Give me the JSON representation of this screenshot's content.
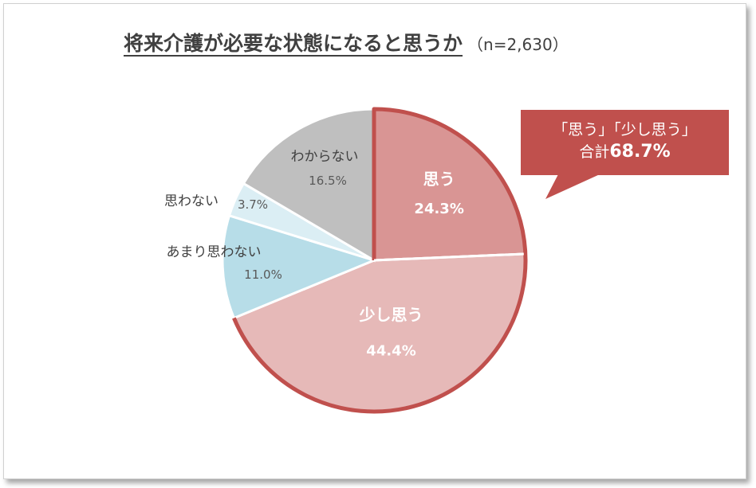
{
  "title": "将来介護が必要な状態になると思うか",
  "subtitle": "（n=2,630）",
  "callout": {
    "line1": "「思う」「少し思う」",
    "prefix": "合計",
    "value": "68.7%"
  },
  "colors": {
    "omou": "#d99594",
    "sukoshi_omou": "#e6b9b8",
    "amari_omowanai": "#b7dde8",
    "omowanai": "#dbeef4",
    "wakaranai": "#bfbfbf",
    "accent": "#c0504d"
  },
  "chart_data": {
    "type": "pie",
    "start": "12 o'clock, clockwise",
    "slices": [
      {
        "label": "思う",
        "value": 24.3,
        "display": "24.3%"
      },
      {
        "label": "少し思う",
        "value": 44.4,
        "display": "44.4%"
      },
      {
        "label": "あまり思わない",
        "value": 11.0,
        "display": "11.0%"
      },
      {
        "label": "思わない",
        "value": 3.7,
        "display": "3.7%"
      },
      {
        "label": "わからない",
        "value": 16.5,
        "display": "16.5%"
      }
    ],
    "highlighted": [
      "思う",
      "少し思う"
    ]
  }
}
